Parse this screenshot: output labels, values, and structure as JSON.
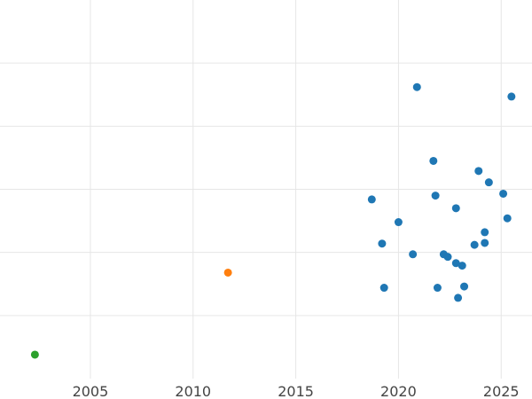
{
  "chart_data": {
    "type": "scatter",
    "title": "",
    "xlabel": "",
    "ylabel": "",
    "xlim": [
      2000.6,
      2026.5
    ],
    "ylim": [
      0,
      6
    ],
    "grid": true,
    "x_ticks": [
      2005,
      2010,
      2015,
      2020,
      2025
    ],
    "x_tick_labels": [
      "2005",
      "2010",
      "2015",
      "2020",
      "2025"
    ],
    "y_ticks": [
      1,
      2,
      3,
      4,
      5
    ],
    "series": [
      {
        "color": "#1f77b4",
        "points": [
          {
            "x": 2020.9,
            "y": 4.62
          },
          {
            "x": 2025.5,
            "y": 4.47
          },
          {
            "x": 2021.7,
            "y": 3.45
          },
          {
            "x": 2023.9,
            "y": 3.29
          },
          {
            "x": 2024.4,
            "y": 3.11
          },
          {
            "x": 2025.1,
            "y": 2.93
          },
          {
            "x": 2018.7,
            "y": 2.84
          },
          {
            "x": 2021.8,
            "y": 2.9
          },
          {
            "x": 2022.8,
            "y": 2.7
          },
          {
            "x": 2020.0,
            "y": 2.48
          },
          {
            "x": 2025.3,
            "y": 2.54
          },
          {
            "x": 2024.2,
            "y": 2.32
          },
          {
            "x": 2024.2,
            "y": 2.15
          },
          {
            "x": 2023.7,
            "y": 2.12
          },
          {
            "x": 2019.2,
            "y": 2.14
          },
          {
            "x": 2020.7,
            "y": 1.97
          },
          {
            "x": 2022.2,
            "y": 1.97
          },
          {
            "x": 2022.4,
            "y": 1.93
          },
          {
            "x": 2022.8,
            "y": 1.83
          },
          {
            "x": 2023.1,
            "y": 1.79
          },
          {
            "x": 2019.3,
            "y": 1.44
          },
          {
            "x": 2021.9,
            "y": 1.44
          },
          {
            "x": 2023.2,
            "y": 1.46
          },
          {
            "x": 2022.9,
            "y": 1.28
          }
        ]
      },
      {
        "color": "#ff7f0e",
        "points": [
          {
            "x": 2011.7,
            "y": 1.68
          }
        ]
      },
      {
        "color": "#2ca02c",
        "points": [
          {
            "x": 2002.3,
            "y": 0.38
          }
        ]
      }
    ]
  }
}
